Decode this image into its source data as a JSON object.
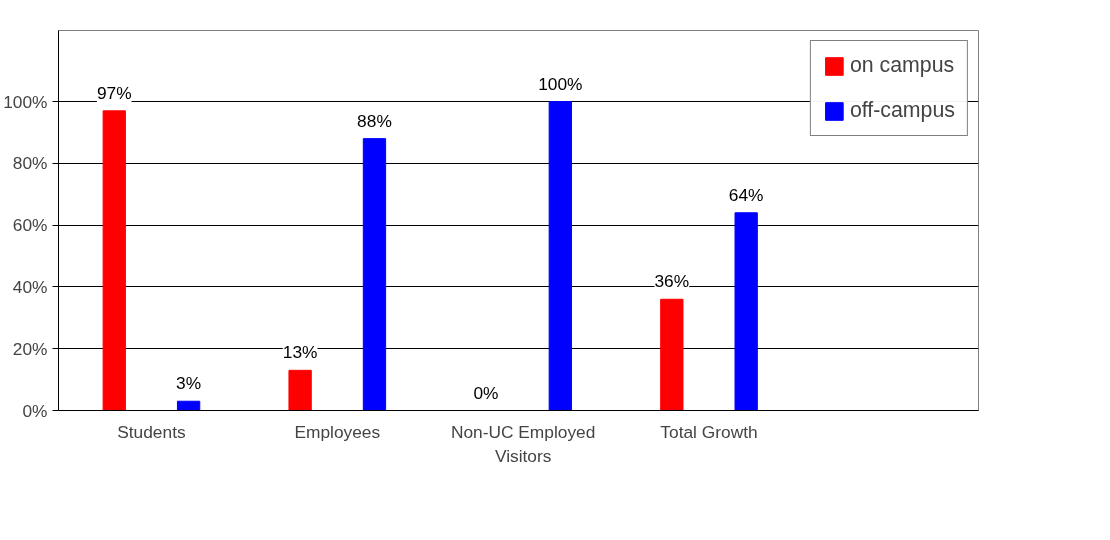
{
  "chart_data": {
    "type": "bar",
    "categories": [
      "Students",
      "Employees",
      "Non-UC Employed\nVisitors",
      "Total Growth"
    ],
    "series": [
      {
        "name": "on campus",
        "color": "#ff0000",
        "values": [
          97,
          13,
          0,
          36
        ]
      },
      {
        "name": "off-campus",
        "color": "#0000ff",
        "values": [
          3,
          88,
          100,
          64
        ]
      }
    ],
    "ylim": [
      0,
      123
    ],
    "yticks": [
      {
        "value": 0,
        "label": "0%"
      },
      {
        "value": 20,
        "label": "20%"
      },
      {
        "value": 40,
        "label": "40%"
      },
      {
        "value": 60,
        "label": "60%"
      },
      {
        "value": 80,
        "label": "80%"
      },
      {
        "value": 100,
        "label": "100%"
      }
    ],
    "value_labels": [
      [
        "97%",
        "13%",
        "0%",
        "36%"
      ],
      [
        "3%",
        "88%",
        "100%",
        "64%"
      ]
    ],
    "grid": "y",
    "legend": "top right"
  }
}
